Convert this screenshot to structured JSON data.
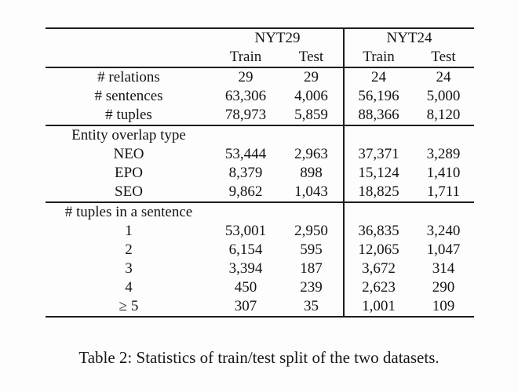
{
  "caption": "Table 2: Statistics of train/test split of the two datasets.",
  "table": {
    "groups": [
      "NYT29",
      "NYT24"
    ],
    "subheaders": [
      "Train",
      "Test",
      "Train",
      "Test"
    ],
    "sections": [
      {
        "header": "",
        "rows": [
          {
            "label": "# relations",
            "values": [
              "29",
              "29",
              "24",
              "24"
            ]
          },
          {
            "label": "# sentences",
            "values": [
              "63,306",
              "4,006",
              "56,196",
              "5,000"
            ]
          },
          {
            "label": "# tuples",
            "values": [
              "78,973",
              "5,859",
              "88,366",
              "8,120"
            ]
          }
        ]
      },
      {
        "header": "Entity overlap type",
        "rows": [
          {
            "label": "NEO",
            "values": [
              "53,444",
              "2,963",
              "37,371",
              "3,289"
            ]
          },
          {
            "label": "EPO",
            "values": [
              "8,379",
              "898",
              "15,124",
              "1,410"
            ]
          },
          {
            "label": "SEO",
            "values": [
              "9,862",
              "1,043",
              "18,825",
              "1,711"
            ]
          }
        ]
      },
      {
        "header": "# tuples in a sentence",
        "rows": [
          {
            "label": "1",
            "values": [
              "53,001",
              "2,950",
              "36,835",
              "3,240"
            ]
          },
          {
            "label": "2",
            "values": [
              "6,154",
              "595",
              "12,065",
              "1,047"
            ]
          },
          {
            "label": "3",
            "values": [
              "3,394",
              "187",
              "3,672",
              "314"
            ]
          },
          {
            "label": "4",
            "values": [
              "450",
              "239",
              "2,623",
              "290"
            ]
          },
          {
            "label": "≥ 5",
            "values": [
              "307",
              "35",
              "1,001",
              "109"
            ]
          }
        ]
      }
    ]
  }
}
